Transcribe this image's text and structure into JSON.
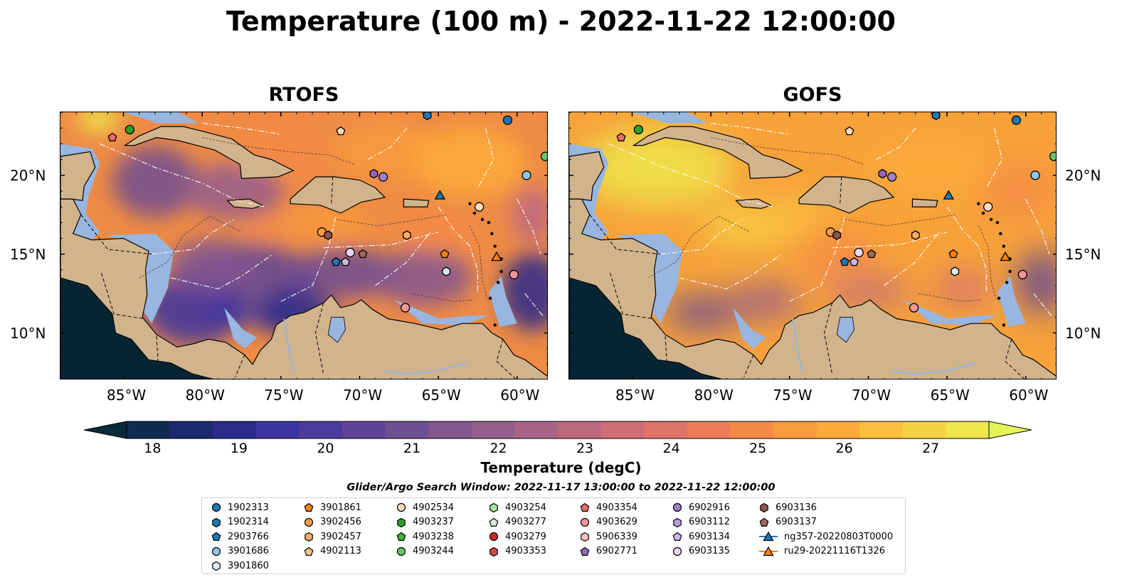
{
  "title": "Temperature (100 m) - 2022-11-22 12:00:00",
  "panels": [
    {
      "title": "RTOFS",
      "variant": "rtofs"
    },
    {
      "title": "GOFS",
      "variant": "gofs"
    }
  ],
  "lon_ticks": [
    "85°W",
    "80°W",
    "75°W",
    "70°W",
    "65°W",
    "60°W"
  ],
  "lat_ticks": [
    "20°N",
    "15°N",
    "10°N"
  ],
  "colorbar": {
    "label": "Temperature (degC)",
    "min": 18,
    "max": 27,
    "ticks": [
      "18",
      "19",
      "20",
      "21",
      "22",
      "23",
      "24",
      "25",
      "26",
      "27"
    ],
    "colors": [
      "#082b3a",
      "#112a52",
      "#1c2a6e",
      "#2a2c8c",
      "#3b33a0",
      "#4c3a9c",
      "#5e4496",
      "#704e92",
      "#825690",
      "#955e8c",
      "#a86386",
      "#bc6880",
      "#cf6e76",
      "#e0746a",
      "#ee7c58",
      "#f58947",
      "#f99a3d",
      "#fbab3a",
      "#fbbe3e",
      "#f7d244",
      "#eee64b",
      "#e3f556"
    ]
  },
  "legend_title": "Glider/Argo Search Window: 2022-11-17 13:00:00 to 2022-11-22 12:00:00",
  "legend": [
    {
      "label": "1902313",
      "marker": "circle",
      "color": "#1f77b4"
    },
    {
      "label": "1902314",
      "marker": "hexagon",
      "color": "#1f77b4"
    },
    {
      "label": "2903766",
      "marker": "pentagon",
      "color": "#1f77b4"
    },
    {
      "label": "3901686",
      "marker": "circle",
      "color": "#8cc4ec"
    },
    {
      "label": "3901860",
      "marker": "hexagon",
      "color": "#d8ecfa"
    },
    {
      "label": "3901861",
      "marker": "pentagon",
      "color": "#ff7f0e"
    },
    {
      "label": "3902456",
      "marker": "circle",
      "color": "#ff9a45"
    },
    {
      "label": "3902457",
      "marker": "hexagon",
      "color": "#ffae66"
    },
    {
      "label": "4902113",
      "marker": "pentagon",
      "color": "#ffc48f"
    },
    {
      "label": "4902534",
      "marker": "circle",
      "color": "#ffdcbf"
    },
    {
      "label": "4903237",
      "marker": "hexagon",
      "color": "#2ca02c"
    },
    {
      "label": "4903238",
      "marker": "pentagon",
      "color": "#3fb83f"
    },
    {
      "label": "4903244",
      "marker": "circle",
      "color": "#66c766"
    },
    {
      "label": "4903254",
      "marker": "hexagon",
      "color": "#a7e5a2"
    },
    {
      "label": "4903277",
      "marker": "pentagon",
      "color": "#d4f5d0"
    },
    {
      "label": "4903279",
      "marker": "circle",
      "color": "#d62728"
    },
    {
      "label": "4903353",
      "marker": "hexagon",
      "color": "#e04545"
    },
    {
      "label": "4903354",
      "marker": "pentagon",
      "color": "#ef6a6a"
    },
    {
      "label": "4903629",
      "marker": "circle",
      "color": "#f39696"
    },
    {
      "label": "5906339",
      "marker": "hexagon",
      "color": "#fbc4c4"
    },
    {
      "label": "6902771",
      "marker": "pentagon",
      "color": "#9467bd"
    },
    {
      "label": "6902916",
      "marker": "circle",
      "color": "#a07ed0"
    },
    {
      "label": "6903112",
      "marker": "hexagon",
      "color": "#b99be0"
    },
    {
      "label": "6903134",
      "marker": "pentagon",
      "color": "#cdb5ec"
    },
    {
      "label": "6903135",
      "marker": "circle",
      "color": "#e6d5f7"
    },
    {
      "label": "6903136",
      "marker": "hexagon",
      "color": "#8c564b"
    },
    {
      "label": "6903137",
      "marker": "pentagon",
      "color": "#a0685c"
    },
    {
      "label": "ng357-20220803T0000",
      "marker": "triangle-line",
      "color": "#1f77b4"
    },
    {
      "label": "ru29-20221116T1326",
      "marker": "triangle-line",
      "color": "#ff7f0e"
    }
  ],
  "map_markers": [
    {
      "lon": -85.7,
      "lat": 22.4,
      "marker": "pentagon",
      "color": "#ef6a6a"
    },
    {
      "lon": -84.6,
      "lat": 22.9,
      "marker": "circle",
      "color": "#2ca02c"
    },
    {
      "lon": -71.2,
      "lat": 22.8,
      "marker": "pentagon",
      "color": "#ffdcbf"
    },
    {
      "lon": -65.7,
      "lat": 23.8,
      "marker": "hexagon",
      "color": "#1f77b4"
    },
    {
      "lon": -60.6,
      "lat": 23.5,
      "marker": "circle",
      "color": "#1f77b4"
    },
    {
      "lon": -58.2,
      "lat": 21.2,
      "marker": "circle",
      "color": "#66c766"
    },
    {
      "lon": -59.4,
      "lat": 20.0,
      "marker": "circle",
      "color": "#8cc4ec"
    },
    {
      "lon": -69.1,
      "lat": 20.1,
      "marker": "hexagon",
      "color": "#9467bd"
    },
    {
      "lon": -68.5,
      "lat": 19.9,
      "marker": "circle",
      "color": "#a07ed0"
    },
    {
      "lon": -64.9,
      "lat": 18.7,
      "marker": "triangle",
      "color": "#1f77b4"
    },
    {
      "lon": -62.4,
      "lat": 18.0,
      "marker": "circle",
      "color": "#ffdcbf"
    },
    {
      "lon": -72.4,
      "lat": 16.4,
      "marker": "circle",
      "color": "#ff9a45"
    },
    {
      "lon": -72.0,
      "lat": 16.2,
      "marker": "hexagon",
      "color": "#8c564b"
    },
    {
      "lon": -67.0,
      "lat": 16.2,
      "marker": "hexagon",
      "color": "#ffae66"
    },
    {
      "lon": -71.5,
      "lat": 14.5,
      "marker": "pentagon",
      "color": "#1f77b4"
    },
    {
      "lon": -70.9,
      "lat": 14.5,
      "marker": "pentagon",
      "color": "#cdb5ec"
    },
    {
      "lon": -70.6,
      "lat": 15.1,
      "marker": "circle",
      "color": "#e6d5f7"
    },
    {
      "lon": -69.8,
      "lat": 15.0,
      "marker": "pentagon",
      "color": "#a0685c"
    },
    {
      "lon": -64.6,
      "lat": 15.0,
      "marker": "pentagon",
      "color": "#ff7f0e"
    },
    {
      "lon": -61.3,
      "lat": 14.8,
      "marker": "triangle",
      "color": "#ff7f0e"
    },
    {
      "lon": -64.5,
      "lat": 13.9,
      "marker": "hexagon",
      "color": "#d8ecfa"
    },
    {
      "lon": -60.2,
      "lat": 13.7,
      "marker": "circle",
      "color": "#f39696"
    },
    {
      "lon": -67.1,
      "lat": 11.6,
      "marker": "circle",
      "color": "#f39696"
    }
  ]
}
